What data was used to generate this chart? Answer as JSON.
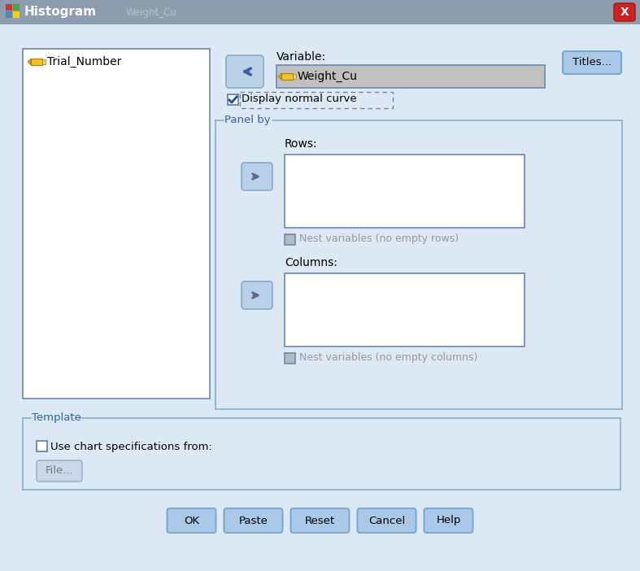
{
  "title": "Histogram",
  "titlebar_bg": "#8c9eae",
  "titlebar_text_right": "Weight_Cu",
  "window_bg": "#d6e4f0",
  "dialog_bg": "#dce8f4",
  "left_list_label": "Trial_Number",
  "variable_label": "Variable:",
  "variable_value": "Weight_Cu",
  "display_normal_curve": "Display normal curve",
  "panel_by_label": "Panel by",
  "rows_label": "Rows:",
  "columns_label": "Columns:",
  "nest_rows_label": "Nest variables (no empty rows)",
  "nest_cols_label": "Nest variables (no empty columns)",
  "template_label": "Template",
  "use_chart_label": "Use chart specifications from:",
  "file_btn": "File...",
  "titles_btn": "Titles...",
  "ok_btn": "OK",
  "paste_btn": "Paste",
  "reset_btn": "Reset",
  "cancel_btn": "Cancel",
  "help_btn": "Help",
  "close_btn_color": "#c0392b",
  "btn_face": "#aac8e8",
  "btn_edge": "#7aaad0",
  "btn_text": "#000000",
  "white_box": "#ffffff",
  "var_field_bg": "#c0c0c0",
  "var_field_edge": "#7090b8",
  "list_edge": "#7090b8",
  "panel_edge": "#8aaccc",
  "panel_label_color": "#3060a0",
  "disabled_text": "#999999",
  "checkbox_bg": "#aabbcc",
  "arrow_btn_face": "#b8d0e8",
  "arrow_btn_edge": "#8aaac8",
  "arrow_color": "#606880",
  "pencil_yellow": "#f0c030",
  "pencil_edge": "#a08000",
  "text_color": "#000000",
  "nest_cb_face": "#aabbcc",
  "nest_cb_edge": "#778899"
}
